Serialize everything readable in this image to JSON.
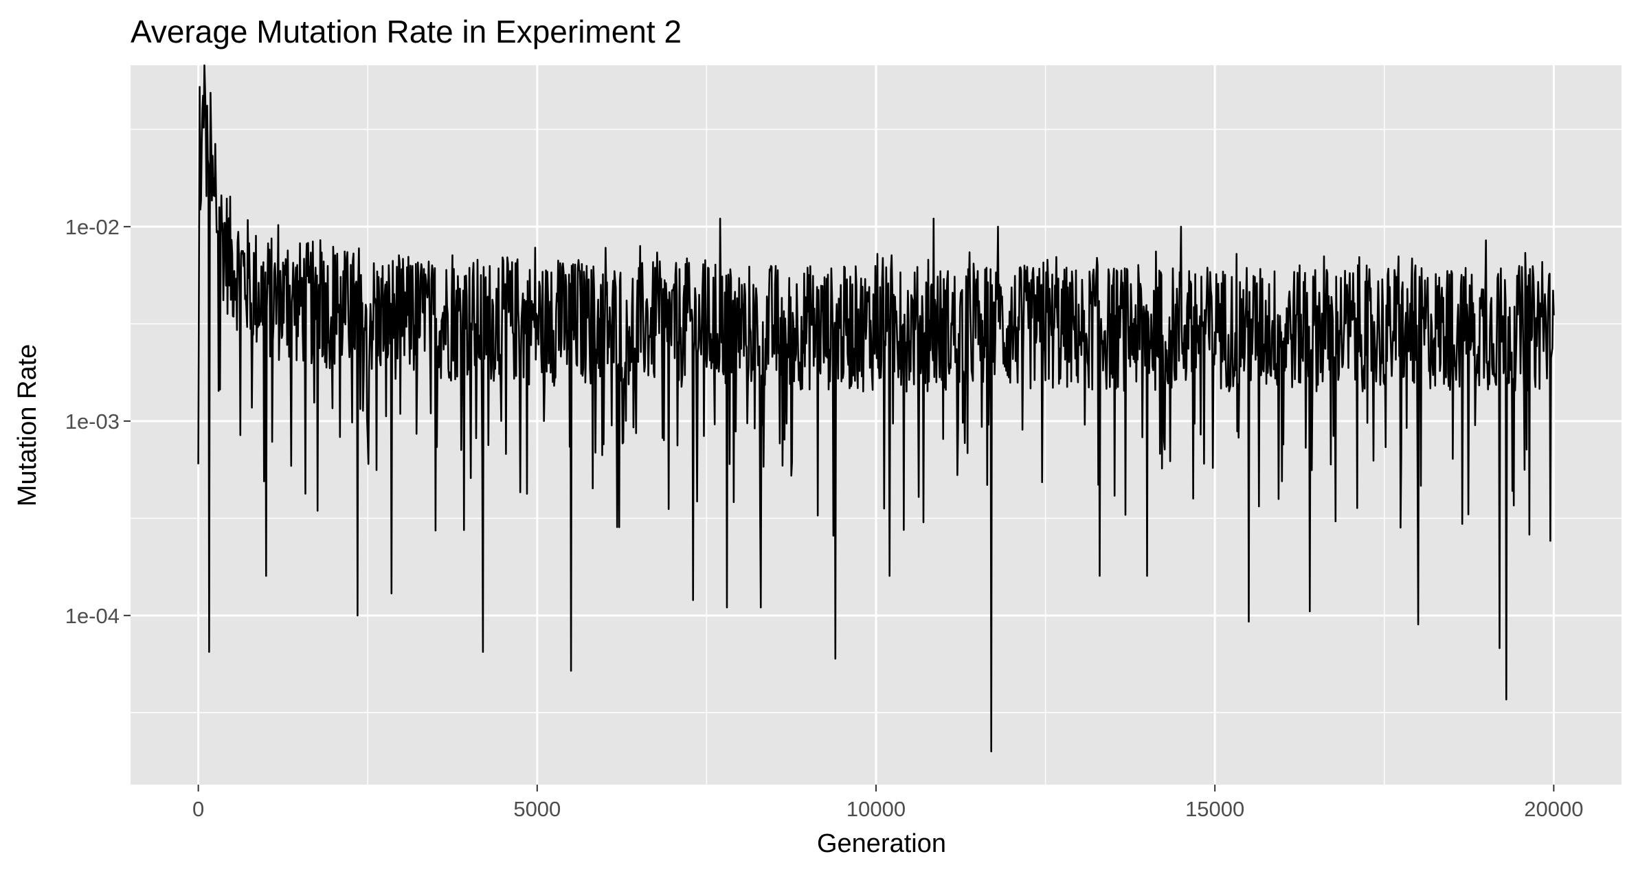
{
  "chart_data": {
    "type": "line",
    "title": "Average Mutation Rate in Experiment 2",
    "xlabel": "Generation",
    "ylabel": "Mutation Rate",
    "xlim": [
      -1000,
      21000
    ],
    "ylim_log10": [
      -4.87,
      -1.17
    ],
    "y_scale": "log10",
    "x_ticks": [
      0,
      5000,
      10000,
      15000,
      20000
    ],
    "x_tick_labels": [
      "0",
      "5000",
      "10000",
      "15000",
      "20000"
    ],
    "y_ticks": [
      0.0001,
      0.001,
      0.01
    ],
    "y_tick_labels": [
      "1e-04",
      "1e-03",
      "1e-02"
    ],
    "grid": true,
    "panel_color": "#e5e5e5",
    "grid_color": "#ffffff",
    "line_color": "#000000",
    "series": [
      {
        "x": [
          0,
          20,
          40,
          60,
          80,
          100,
          120,
          140,
          160,
          180,
          200,
          250,
          300,
          350,
          400,
          450,
          500,
          600,
          700,
          800,
          900,
          1000,
          1200,
          1400,
          1600,
          1800,
          2000,
          2200,
          2400,
          2600,
          2800,
          3000,
          3500,
          4000,
          4200,
          4500,
          5000,
          5500,
          6000,
          6500,
          7000,
          7500,
          7700,
          8000,
          8300,
          8500,
          9000,
          9400,
          10000,
          10500,
          10850,
          11000,
          11500,
          11700,
          12000,
          12500,
          13000,
          13500,
          14000,
          14500,
          15000,
          15500,
          16000,
          16400,
          17000,
          17500,
          18000,
          18500,
          19000,
          19200,
          19500,
          20000
        ],
        "values": [
          0.0006,
          0.04,
          0.01,
          0.035,
          0.05,
          0.03,
          0.02,
          0.025,
          0.0065,
          0.024,
          0.015,
          0.012,
          0.01,
          0.009,
          0.008,
          0.007,
          0.0065,
          0.006,
          0.0055,
          0.005,
          0.0045,
          0.0043,
          0.0042,
          0.0041,
          0.004,
          0.004,
          0.0038,
          0.0037,
          0.0036,
          0.0035,
          0.0035,
          0.0034,
          0.0034,
          0.0033,
          0.0033,
          0.0033,
          0.0032,
          0.0032,
          0.0032,
          0.0032,
          0.0031,
          0.0031,
          0.0031,
          0.0031,
          0.0031,
          0.0031,
          0.003,
          0.003,
          0.003,
          0.003,
          0.003,
          0.003,
          0.003,
          0.003,
          0.003,
          0.003,
          0.003,
          0.003,
          0.003,
          0.003,
          0.003,
          0.003,
          0.003,
          0.003,
          0.003,
          0.003,
          0.003,
          0.003,
          0.003,
          0.003,
          0.003,
          0.003
        ],
        "extreme_lows": [
          [
            160,
            6.5e-05
          ],
          [
            1000,
            0.00016
          ],
          [
            2350,
            0.0001
          ],
          [
            2850,
            0.00013
          ],
          [
            4200,
            6.5e-05
          ],
          [
            5500,
            5.2e-05
          ],
          [
            7300,
            0.00012
          ],
          [
            7800,
            0.00011
          ],
          [
            8300,
            0.00011
          ],
          [
            9400,
            6e-05
          ],
          [
            10200,
            0.00016
          ],
          [
            11700,
            2e-05
          ],
          [
            13300,
            0.00016
          ],
          [
            14000,
            0.00016
          ],
          [
            15500,
            9.3e-05
          ],
          [
            16400,
            0.000105
          ],
          [
            18000,
            9e-05
          ],
          [
            19200,
            6.8e-05
          ],
          [
            19300,
            3.7e-05
          ]
        ],
        "extreme_highs": [
          [
            60,
            0.04
          ],
          [
            100,
            0.05
          ],
          [
            7700,
            0.011
          ],
          [
            10850,
            0.011
          ],
          [
            11800,
            0.01
          ],
          [
            14500,
            0.01
          ],
          [
            19000,
            0.0085
          ]
        ]
      }
    ]
  }
}
